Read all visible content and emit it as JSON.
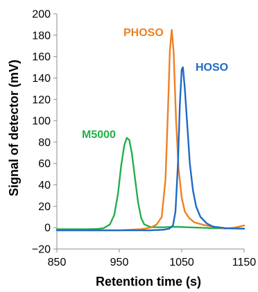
{
  "chart_data": {
    "type": "line",
    "title": "",
    "xlabel": "Retention time (s)",
    "ylabel": "Signal of detector (mV)",
    "xlim": [
      850,
      1150
    ],
    "ylim": [
      -20,
      200
    ],
    "x_ticks": [
      850,
      950,
      1050,
      1150
    ],
    "x_tick_labels": [
      "850",
      "950",
      "1050",
      "1150"
    ],
    "y_ticks": [
      -20,
      0,
      20,
      40,
      60,
      80,
      100,
      120,
      140,
      160,
      180,
      200
    ],
    "y_tick_labels": [
      "−20",
      "0",
      "20",
      "40",
      "60",
      "80",
      "100",
      "120",
      "140",
      "160",
      "180",
      "200"
    ],
    "grid": false,
    "legend": "none",
    "series": [
      {
        "name": "M5000",
        "color": "#22b04a",
        "points": [
          [
            850,
            -1.5
          ],
          [
            900,
            -1.5
          ],
          [
            915,
            -1.2
          ],
          [
            925,
            -0.5
          ],
          [
            935,
            3
          ],
          [
            942,
            12
          ],
          [
            948,
            32
          ],
          [
            953,
            58
          ],
          [
            958,
            77
          ],
          [
            962,
            84
          ],
          [
            966,
            82
          ],
          [
            970,
            70
          ],
          [
            975,
            47
          ],
          [
            980,
            24
          ],
          [
            985,
            9
          ],
          [
            990,
            3
          ],
          [
            1000,
            0.5
          ],
          [
            1020,
            0.3
          ],
          [
            1040,
            0.8
          ],
          [
            1060,
            0.3
          ],
          [
            1100,
            -0.5
          ],
          [
            1150,
            -1.0
          ]
        ]
      },
      {
        "name": "PHOSO",
        "color": "#f07f22",
        "points": [
          [
            850,
            -2.5
          ],
          [
            950,
            -2.5
          ],
          [
            985,
            -1.5
          ],
          [
            1000,
            0
          ],
          [
            1010,
            3
          ],
          [
            1018,
            10
          ],
          [
            1024,
            45
          ],
          [
            1028,
            110
          ],
          [
            1031,
            165
          ],
          [
            1034,
            185
          ],
          [
            1037,
            165
          ],
          [
            1041,
            100
          ],
          [
            1045,
            55
          ],
          [
            1050,
            28
          ],
          [
            1055,
            15
          ],
          [
            1062,
            9
          ],
          [
            1070,
            5
          ],
          [
            1085,
            2.5
          ],
          [
            1100,
            1
          ],
          [
            1120,
            -1
          ],
          [
            1135,
            0
          ],
          [
            1150,
            2
          ]
        ]
      },
      {
        "name": "HOSO",
        "color": "#1f69c5",
        "points": [
          [
            850,
            -2.5
          ],
          [
            1000,
            -2.5
          ],
          [
            1020,
            -2
          ],
          [
            1030,
            -1
          ],
          [
            1036,
            2
          ],
          [
            1040,
            15
          ],
          [
            1044,
            60
          ],
          [
            1047,
            115
          ],
          [
            1050,
            148
          ],
          [
            1052,
            150
          ],
          [
            1055,
            130
          ],
          [
            1059,
            95
          ],
          [
            1063,
            60
          ],
          [
            1068,
            35
          ],
          [
            1073,
            20
          ],
          [
            1080,
            10
          ],
          [
            1090,
            4
          ],
          [
            1100,
            1
          ],
          [
            1120,
            -0.5
          ],
          [
            1150,
            -1
          ]
        ]
      }
    ],
    "annotations": [
      {
        "text": "M5000",
        "color": "#22b04a"
      },
      {
        "text": "PHOSO",
        "color": "#f07f22"
      },
      {
        "text": "HOSO",
        "color": "#1f69c5"
      }
    ]
  }
}
